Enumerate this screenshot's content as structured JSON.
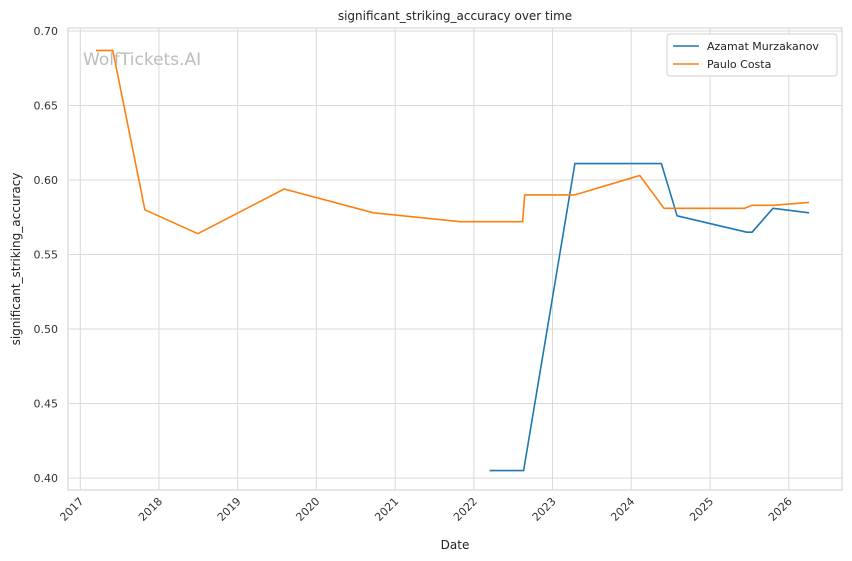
{
  "chart_data": {
    "type": "line",
    "title": "significant_striking_accuracy over time",
    "xlabel": "Date",
    "ylabel": "significant_striking_accuracy",
    "watermark": "WolfTickets.AI",
    "xlim": [
      "2016-11-05",
      "2026-09-05"
    ],
    "ylim": [
      0.392,
      0.702
    ],
    "x_ticks": [
      "2017-01-01",
      "2018-01-01",
      "2019-01-01",
      "2020-01-01",
      "2021-01-01",
      "2022-01-01",
      "2023-01-01",
      "2024-01-01",
      "2025-01-01",
      "2026-01-01"
    ],
    "x_tick_labels": [
      "2017",
      "2018",
      "2019",
      "2020",
      "2021",
      "2022",
      "2023",
      "2024",
      "2025",
      "2026"
    ],
    "y_ticks": [
      0.4,
      0.45,
      0.5,
      0.55,
      0.6,
      0.65,
      0.7
    ],
    "y_tick_labels": [
      "0.40",
      "0.45",
      "0.50",
      "0.55",
      "0.60",
      "0.65",
      "0.70"
    ],
    "grid": true,
    "legend_position": "top-right",
    "series": [
      {
        "name": "Azamat Murzakanov",
        "color": "#1f77b4",
        "x": [
          "2022-03-15",
          "2022-08-20",
          "2023-04-15",
          "2024-05-20",
          "2024-08-01",
          "2025-06-20",
          "2025-07-15",
          "2025-10-20",
          "2026-04-05"
        ],
        "y": [
          0.405,
          0.405,
          0.611,
          0.611,
          0.576,
          0.565,
          0.565,
          0.581,
          0.578
        ]
      },
      {
        "name": "Paulo Costa",
        "color": "#ff7f0e",
        "x": [
          "2017-03-15",
          "2017-06-01",
          "2017-10-28",
          "2018-06-30",
          "2019-08-05",
          "2020-09-22",
          "2021-10-30",
          "2022-08-15",
          "2022-08-25",
          "2023-04-15",
          "2024-02-10",
          "2024-06-01",
          "2025-06-10",
          "2025-07-15",
          "2025-10-20",
          "2026-04-05"
        ],
        "y": [
          0.687,
          0.687,
          0.58,
          0.564,
          0.594,
          0.578,
          0.572,
          0.572,
          0.59,
          0.59,
          0.603,
          0.581,
          0.581,
          0.583,
          0.583,
          0.585
        ]
      }
    ]
  }
}
